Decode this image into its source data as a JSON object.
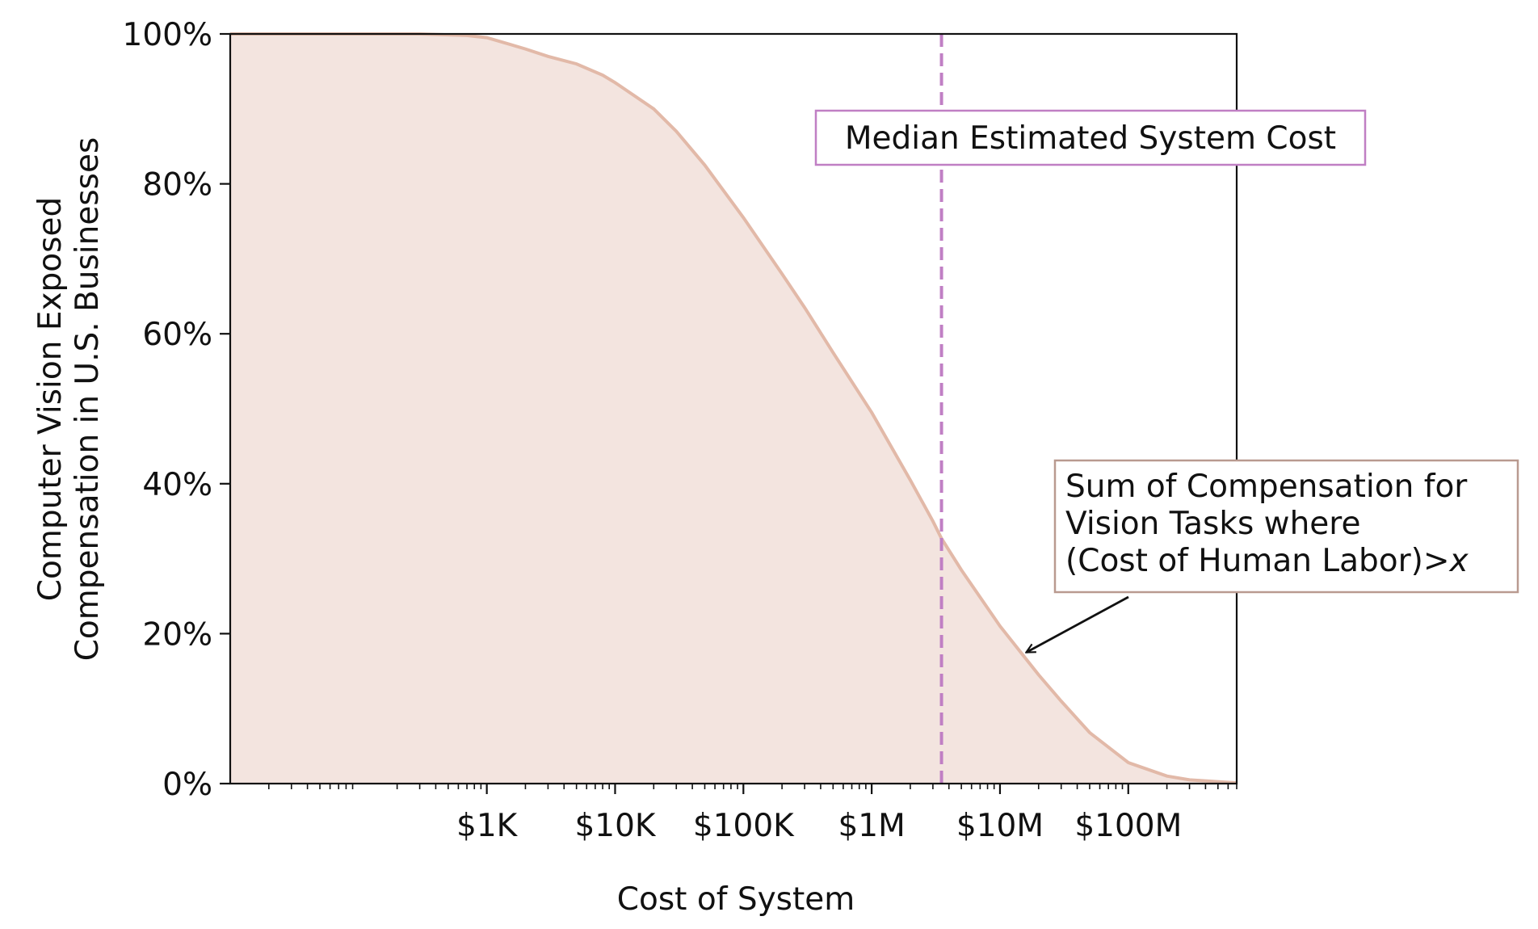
{
  "chart_data": {
    "type": "area",
    "xlabel": "Cost of System",
    "ylabel_lines": [
      "Computer Vision Exposed",
      "Compensation in U.S. Businesses"
    ],
    "x_scale": "log",
    "xlim": [
      10,
      700000000
    ],
    "ylim": [
      0,
      100
    ],
    "x_ticks": [
      {
        "value": 1000,
        "label": "$1K"
      },
      {
        "value": 10000,
        "label": "$10K"
      },
      {
        "value": 100000,
        "label": "$100K"
      },
      {
        "value": 1000000,
        "label": "$1M"
      },
      {
        "value": 10000000,
        "label": "$10M"
      },
      {
        "value": 100000000,
        "label": "$100M"
      }
    ],
    "y_ticks": [
      {
        "value": 0,
        "label": "0%"
      },
      {
        "value": 20,
        "label": "20%"
      },
      {
        "value": 40,
        "label": "40%"
      },
      {
        "value": 60,
        "label": "60%"
      },
      {
        "value": 80,
        "label": "80%"
      },
      {
        "value": 100,
        "label": "100%"
      }
    ],
    "grid": false,
    "series": [
      {
        "line_color": "#e2b9a8",
        "fill_color": "#f3e4df",
        "points": [
          {
            "x": 10,
            "y": 100
          },
          {
            "x": 100,
            "y": 100
          },
          {
            "x": 300,
            "y": 100
          },
          {
            "x": 700,
            "y": 99.8
          },
          {
            "x": 1000,
            "y": 99.5
          },
          {
            "x": 2000,
            "y": 98
          },
          {
            "x": 3000,
            "y": 97
          },
          {
            "x": 5000,
            "y": 96
          },
          {
            "x": 8000,
            "y": 94.5
          },
          {
            "x": 10000,
            "y": 93.5
          },
          {
            "x": 20000,
            "y": 90
          },
          {
            "x": 30000,
            "y": 87
          },
          {
            "x": 50000,
            "y": 82.5
          },
          {
            "x": 100000,
            "y": 75.5
          },
          {
            "x": 200000,
            "y": 68
          },
          {
            "x": 300000,
            "y": 63.5
          },
          {
            "x": 500000,
            "y": 57.5
          },
          {
            "x": 1000000,
            "y": 49.5
          },
          {
            "x": 2000000,
            "y": 40.5
          },
          {
            "x": 3000000,
            "y": 35
          },
          {
            "x": 3500000,
            "y": 32.7
          },
          {
            "x": 5000000,
            "y": 28.5
          },
          {
            "x": 10000000,
            "y": 21
          },
          {
            "x": 20000000,
            "y": 14.5
          },
          {
            "x": 30000000,
            "y": 11
          },
          {
            "x": 50000000,
            "y": 6.8
          },
          {
            "x": 100000000,
            "y": 2.8
          },
          {
            "x": 200000000,
            "y": 1.0
          },
          {
            "x": 300000000,
            "y": 0.5
          },
          {
            "x": 700000000,
            "y": 0.1
          }
        ]
      }
    ],
    "median_line": {
      "x": 3500000,
      "color": "#c07fc4",
      "label": "Median Estimated System Cost"
    },
    "annotation": {
      "lines": [
        "Sum of Compensation for",
        "Vision Tasks where",
        "(Cost of Human Labor)>"
      ],
      "italic_suffix": "x",
      "border_color": "#b99a90",
      "arrow_target": {
        "x": 16000000,
        "y": 17.5
      }
    }
  }
}
